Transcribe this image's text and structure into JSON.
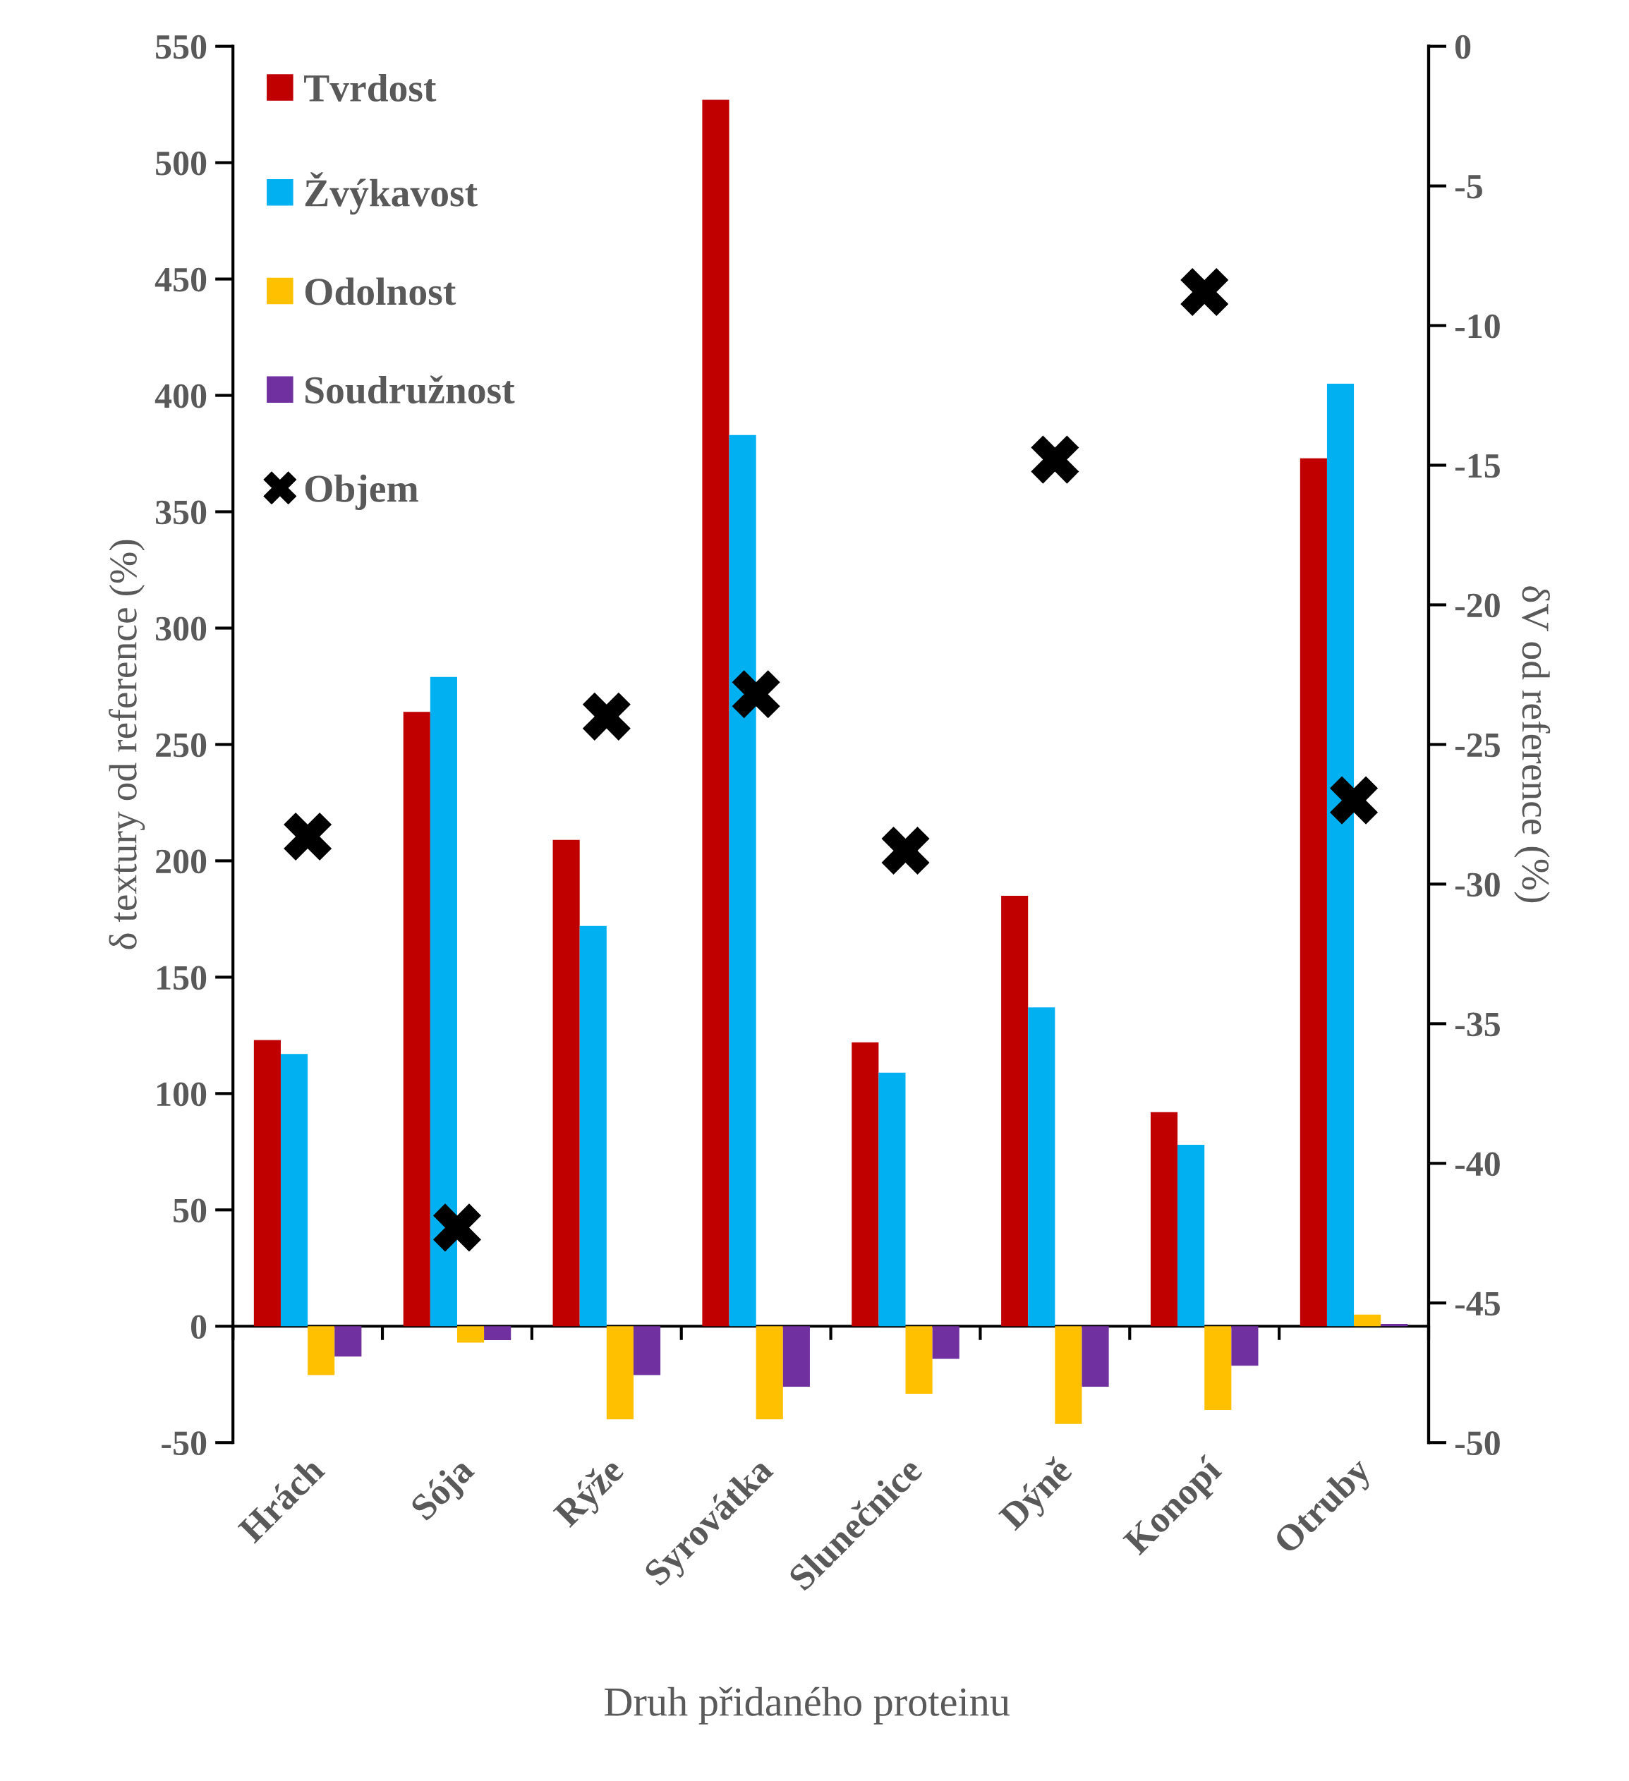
{
  "chart_data": {
    "type": "bar",
    "xlabel": "Druh přidaného proteinu",
    "ylabel": "δ textury od reference (%)",
    "y2label": "δV od reference (%)",
    "categories": [
      "Hrách",
      "Sója",
      "Rýže",
      "Syrovátka",
      "Slunečnice",
      "Dýně",
      "Konopí",
      "Otruby"
    ],
    "series": [
      {
        "name": "Tvrdost",
        "color": "#c00000",
        "values": [
          123,
          264,
          209,
          527,
          122,
          185,
          92,
          373
        ]
      },
      {
        "name": "Žvýkavost",
        "color": "#00b0f0",
        "values": [
          117,
          279,
          172,
          383,
          109,
          137,
          78,
          405
        ]
      },
      {
        "name": "Odolnost",
        "color": "#ffc000",
        "values": [
          -21,
          -7,
          -40,
          -40,
          -29,
          -42,
          -36,
          5
        ]
      },
      {
        "name": "Soudružnost",
        "color": "#7030a0",
        "values": [
          -13,
          -6,
          -21,
          -26,
          -14,
          -26,
          -17,
          1
        ]
      },
      {
        "name": "Objem",
        "type": "scatter",
        "axis": "y2",
        "marker": "cross",
        "color": "#000000",
        "values": [
          -28.3,
          -42.3,
          -24.0,
          -23.2,
          -28.8,
          -14.8,
          -8.8,
          -27.0
        ]
      }
    ],
    "ylim": [
      -50,
      550
    ],
    "yticks": [
      -50,
      0,
      50,
      100,
      150,
      200,
      250,
      300,
      350,
      400,
      450,
      500,
      550
    ],
    "y2lim": [
      -50,
      0
    ],
    "y2ticks": [
      -50,
      -45,
      -40,
      -35,
      -30,
      -25,
      -20,
      -15,
      -10,
      -5,
      0
    ],
    "legend": "top left"
  }
}
